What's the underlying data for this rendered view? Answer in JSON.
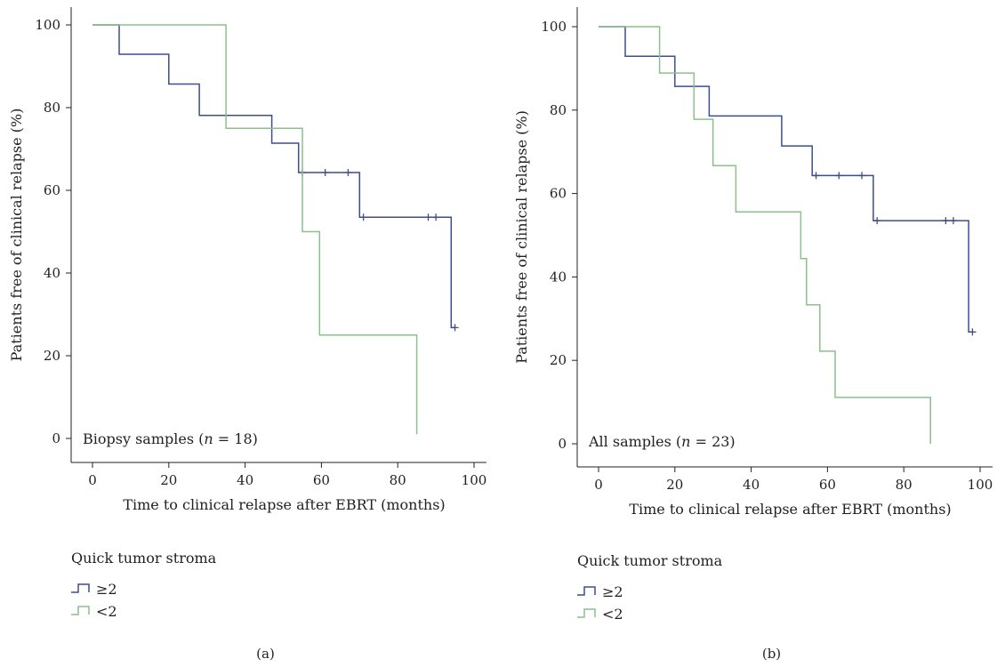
{
  "colors": {
    "high": "#3d4e8a",
    "low": "#8cc08c",
    "axis": "#222222"
  },
  "chart_data": [
    {
      "type": "line",
      "panel_label": "(a)",
      "xlabel": "Time to clinical relapse after EBRT (months)",
      "ylabel": "Patients free of clinical relapse (%)",
      "xlim": [
        0,
        100
      ],
      "ylim": [
        0,
        100
      ],
      "xticks": [
        0,
        20,
        40,
        60,
        80,
        100
      ],
      "yticks": [
        0,
        20,
        40,
        60,
        80,
        100
      ],
      "annotation": {
        "pre": "Biopsy samples (",
        "n": "n",
        "post": " = 18)"
      },
      "legend_title": "Quick tumor stroma",
      "series": [
        {
          "name": "≥2",
          "color_key": "high",
          "steps": [
            [
              0,
              100
            ],
            [
              7,
              100
            ],
            [
              7,
              92.9
            ],
            [
              20,
              92.9
            ],
            [
              20,
              85.7
            ],
            [
              28,
              85.7
            ],
            [
              28,
              78.1
            ],
            [
              47,
              78.1
            ],
            [
              47,
              71.4
            ],
            [
              54,
              71.4
            ],
            [
              54,
              64.3
            ],
            [
              70,
              64.3
            ],
            [
              70,
              53.5
            ],
            [
              94,
              53.5
            ],
            [
              94,
              26.8
            ],
            [
              95,
              26.8
            ]
          ],
          "censored": [
            [
              55,
              64.3
            ],
            [
              61,
              64.3
            ],
            [
              67,
              64.3
            ],
            [
              71,
              53.5
            ],
            [
              88,
              53.5
            ],
            [
              90,
              53.5
            ],
            [
              95,
              26.8
            ]
          ]
        },
        {
          "name": "<2",
          "color_key": "low",
          "steps": [
            [
              0,
              100
            ],
            [
              35,
              100
            ],
            [
              35,
              75
            ],
            [
              55,
              75
            ],
            [
              55,
              50
            ],
            [
              59.5,
              50
            ],
            [
              59.5,
              25
            ],
            [
              85,
              25
            ],
            [
              85,
              1
            ]
          ],
          "censored": []
        }
      ]
    },
    {
      "type": "line",
      "panel_label": "(b)",
      "xlabel": "Time to clinical relapse after EBRT (months)",
      "ylabel": "Patients free of clinical relapse (%)",
      "xlim": [
        0,
        100
      ],
      "ylim": [
        0,
        100
      ],
      "xticks": [
        0,
        20,
        40,
        60,
        80,
        100
      ],
      "yticks": [
        0,
        20,
        40,
        60,
        80,
        100
      ],
      "annotation": {
        "pre": "All samples (",
        "n": "n",
        "post": " = 23)"
      },
      "legend_title": "Quick tumor stroma",
      "series": [
        {
          "name": "≥2",
          "color_key": "high",
          "steps": [
            [
              0,
              100
            ],
            [
              7,
              100
            ],
            [
              7,
              92.9
            ],
            [
              20,
              92.9
            ],
            [
              20,
              85.7
            ],
            [
              29,
              85.7
            ],
            [
              29,
              78.6
            ],
            [
              48,
              78.6
            ],
            [
              48,
              71.4
            ],
            [
              56,
              71.4
            ],
            [
              56,
              64.3
            ],
            [
              72,
              64.3
            ],
            [
              72,
              53.5
            ],
            [
              97,
              53.5
            ],
            [
              97,
              26.8
            ],
            [
              98,
              26.8
            ]
          ],
          "censored": [
            [
              57,
              64.3
            ],
            [
              63,
              64.3
            ],
            [
              69,
              64.3
            ],
            [
              73,
              53.5
            ],
            [
              91,
              53.5
            ],
            [
              93,
              53.5
            ],
            [
              98,
              26.8
            ]
          ]
        },
        {
          "name": "<2",
          "color_key": "low",
          "steps": [
            [
              0,
              100
            ],
            [
              16,
              100
            ],
            [
              16,
              88.9
            ],
            [
              25,
              88.9
            ],
            [
              25,
              77.8
            ],
            [
              30,
              77.8
            ],
            [
              30,
              66.7
            ],
            [
              36,
              66.7
            ],
            [
              36,
              55.6
            ],
            [
              53,
              55.6
            ],
            [
              53,
              44.4
            ],
            [
              54.5,
              44.4
            ],
            [
              54.5,
              33.3
            ],
            [
              58,
              33.3
            ],
            [
              58,
              22.2
            ],
            [
              62,
              22.2
            ],
            [
              62,
              11.1
            ],
            [
              87,
              11.1
            ],
            [
              87,
              0
            ]
          ],
          "censored": []
        }
      ]
    }
  ]
}
